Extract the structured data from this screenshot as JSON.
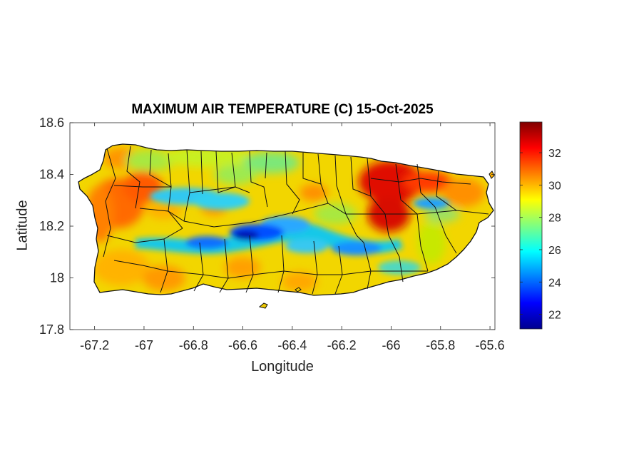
{
  "chart_data": {
    "type": "heatmap",
    "title": "MAXIMUM AIR TEMPERATURE (C) 15-Oct-2025",
    "xlabel": "Longitude",
    "ylabel": "Latitude",
    "xlim": [
      -67.3,
      -65.58
    ],
    "ylim": [
      17.8,
      18.6
    ],
    "xticks": [
      -67.2,
      -67,
      -66.8,
      -66.6,
      -66.4,
      -66.2,
      -66,
      -65.8,
      -65.6
    ],
    "xtick_labels": [
      "-67.2",
      "-67",
      "-66.8",
      "-66.6",
      "-66.4",
      "-66.2",
      "-66",
      "-65.8",
      "-65.6"
    ],
    "yticks": [
      17.8,
      18,
      18.2,
      18.4,
      18.6
    ],
    "ytick_labels": [
      "17.8",
      "18",
      "18.2",
      "18.4",
      "18.6"
    ],
    "colorbar": {
      "colormap": "jet",
      "range": [
        21.1,
        33.9
      ],
      "ticks": [
        22,
        24,
        26,
        28,
        30,
        32
      ],
      "tick_labels": [
        "22",
        "24",
        "26",
        "28",
        "30",
        "32"
      ]
    },
    "region": "Puerto Rico",
    "grid": false
  }
}
